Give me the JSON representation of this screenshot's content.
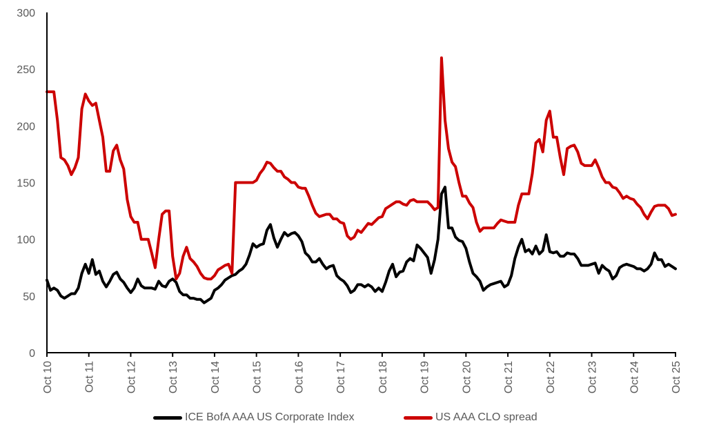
{
  "chart_data": {
    "type": "line",
    "title": "",
    "xlabel": "",
    "ylabel": "",
    "ylim": [
      0,
      300
    ],
    "yticks": [
      "0",
      "50",
      "100",
      "150",
      "200",
      "250",
      "300"
    ],
    "xticks": [
      "Oct 10",
      "Oct 11",
      "Oct 12",
      "Oct 13",
      "Oct 14",
      "Oct 15",
      "Oct 16",
      "Oct 17",
      "Oct 18",
      "Oct 19",
      "Oct 20",
      "Oct 21",
      "Oct 22",
      "Oct 23",
      "Oct 24",
      "Oct 25"
    ],
    "grid": false,
    "legend_position": "bottom",
    "x": [
      "2010-10",
      "2010-11",
      "2010-12",
      "2011-01",
      "2011-02",
      "2011-03",
      "2011-04",
      "2011-05",
      "2011-06",
      "2011-07",
      "2011-08",
      "2011-09",
      "2011-10",
      "2011-11",
      "2011-12",
      "2012-01",
      "2012-02",
      "2012-03",
      "2012-04",
      "2012-05",
      "2012-06",
      "2012-07",
      "2012-08",
      "2012-09",
      "2012-10",
      "2012-11",
      "2012-12",
      "2013-01",
      "2013-02",
      "2013-03",
      "2013-04",
      "2013-05",
      "2013-06",
      "2013-07",
      "2013-08",
      "2013-09",
      "2013-10",
      "2013-11",
      "2013-12",
      "2014-01",
      "2014-02",
      "2014-03",
      "2014-04",
      "2014-05",
      "2014-06",
      "2014-07",
      "2014-08",
      "2014-09",
      "2014-10",
      "2014-11",
      "2014-12",
      "2015-01",
      "2015-02",
      "2015-03",
      "2015-04",
      "2015-05",
      "2015-06",
      "2015-07",
      "2015-08",
      "2015-09",
      "2015-10",
      "2015-11",
      "2015-12",
      "2016-01",
      "2016-02",
      "2016-03",
      "2016-04",
      "2016-05",
      "2016-06",
      "2016-07",
      "2016-08",
      "2016-09",
      "2016-10",
      "2016-11",
      "2016-12",
      "2017-01",
      "2017-02",
      "2017-03",
      "2017-04",
      "2017-05",
      "2017-06",
      "2017-07",
      "2017-08",
      "2017-09",
      "2017-10",
      "2017-11",
      "2017-12",
      "2018-01",
      "2018-02",
      "2018-03",
      "2018-04",
      "2018-05",
      "2018-06",
      "2018-07",
      "2018-08",
      "2018-09",
      "2018-10",
      "2018-11",
      "2018-12",
      "2019-01",
      "2019-02",
      "2019-03",
      "2019-04",
      "2019-05",
      "2019-06",
      "2019-07",
      "2019-08",
      "2019-09",
      "2019-10",
      "2019-11",
      "2019-12",
      "2020-01",
      "2020-02",
      "2020-03",
      "2020-04",
      "2020-05",
      "2020-06",
      "2020-07",
      "2020-08",
      "2020-09",
      "2020-10",
      "2020-11",
      "2020-12",
      "2021-01",
      "2021-02",
      "2021-03",
      "2021-04",
      "2021-05",
      "2021-06",
      "2021-07",
      "2021-08",
      "2021-09",
      "2021-10",
      "2021-11",
      "2021-12",
      "2022-01",
      "2022-02",
      "2022-03",
      "2022-04",
      "2022-05",
      "2022-06",
      "2022-07",
      "2022-08",
      "2022-09",
      "2022-10",
      "2022-11",
      "2022-12",
      "2023-01",
      "2023-02",
      "2023-03",
      "2023-04",
      "2023-05",
      "2023-06",
      "2023-07",
      "2023-08",
      "2023-09",
      "2023-10",
      "2023-11",
      "2023-12",
      "2024-01",
      "2024-02",
      "2024-03",
      "2024-04",
      "2024-05",
      "2024-06",
      "2024-07",
      "2024-08",
      "2024-09",
      "2024-10",
      "2024-11",
      "2024-12",
      "2025-01",
      "2025-02",
      "2025-03",
      "2025-04",
      "2025-05",
      "2025-06",
      "2025-07",
      "2025-08",
      "2025-09",
      "2025-10"
    ],
    "series": [
      {
        "name": "ICE BofA AAA US Corporate Index",
        "color": "#000000",
        "values": [
          64,
          55,
          57,
          55,
          50,
          48,
          50,
          52,
          52,
          57,
          70,
          78,
          70,
          82,
          69,
          72,
          63,
          58,
          63,
          69,
          71,
          65,
          62,
          57,
          53,
          57,
          65,
          59,
          57,
          57,
          57,
          56,
          63,
          59,
          58,
          63,
          65,
          62,
          54,
          51,
          51,
          48,
          48,
          47,
          47,
          44,
          46,
          48,
          55,
          57,
          60,
          64,
          66,
          68,
          69,
          72,
          74,
          78,
          86,
          96,
          93,
          95,
          96,
          108,
          113,
          101,
          93,
          100,
          106,
          103,
          105,
          106,
          103,
          98,
          88,
          85,
          80,
          80,
          83,
          78,
          74,
          76,
          77,
          68,
          65,
          63,
          59,
          53,
          55,
          60,
          60,
          58,
          60,
          58,
          54,
          57,
          54,
          62,
          72,
          78,
          67,
          71,
          72,
          80,
          83,
          81,
          95,
          92,
          88,
          84,
          70,
          82,
          100,
          140,
          146,
          110,
          110,
          102,
          99,
          98,
          92,
          80,
          70,
          67,
          63,
          55,
          58,
          60,
          61,
          62,
          63,
          58,
          60,
          68,
          83,
          93,
          100,
          89,
          91,
          87,
          94,
          87,
          90,
          104,
          89,
          88,
          89,
          85,
          85,
          88,
          87,
          87,
          83,
          77,
          77,
          77,
          78,
          79,
          70,
          77,
          74,
          72,
          65,
          68,
          75,
          77,
          78,
          77,
          76,
          74,
          74,
          72,
          74,
          78,
          88,
          82,
          82,
          76,
          78,
          76,
          74
        ]
      },
      {
        "name": "US AAA CLO spread",
        "color": "#CC0000",
        "values": [
          230,
          230,
          230,
          205,
          172,
          170,
          165,
          157,
          163,
          172,
          215,
          228,
          222,
          218,
          220,
          205,
          190,
          160,
          160,
          178,
          183,
          170,
          162,
          135,
          120,
          115,
          115,
          100,
          100,
          100,
          88,
          75,
          100,
          122,
          125,
          125,
          85,
          65,
          70,
          85,
          93,
          83,
          80,
          76,
          70,
          66,
          65,
          65,
          68,
          73,
          75,
          77,
          78,
          70,
          150,
          150,
          150,
          150,
          150,
          150,
          152,
          158,
          162,
          168,
          167,
          163,
          160,
          160,
          155,
          153,
          150,
          150,
          146,
          145,
          145,
          138,
          130,
          123,
          120,
          121,
          122,
          122,
          118,
          118,
          115,
          114,
          103,
          100,
          102,
          108,
          106,
          110,
          114,
          113,
          116,
          119,
          120,
          127,
          129,
          131,
          133,
          133,
          131,
          130,
          134,
          135,
          133,
          133,
          133,
          133,
          130,
          126,
          128,
          260,
          205,
          180,
          168,
          164,
          150,
          138,
          138,
          132,
          128,
          115,
          107,
          110,
          110,
          110,
          110,
          114,
          117,
          116,
          115,
          115,
          115,
          130,
          140,
          140,
          140,
          158,
          185,
          188,
          177,
          205,
          213,
          190,
          190,
          172,
          157,
          180,
          182,
          183,
          177,
          167,
          165,
          165,
          165,
          170,
          163,
          155,
          150,
          150,
          146,
          145,
          141,
          136,
          138,
          136,
          135,
          131,
          128,
          122,
          118,
          124,
          129,
          130,
          130,
          130,
          127,
          121,
          122
        ]
      }
    ]
  }
}
